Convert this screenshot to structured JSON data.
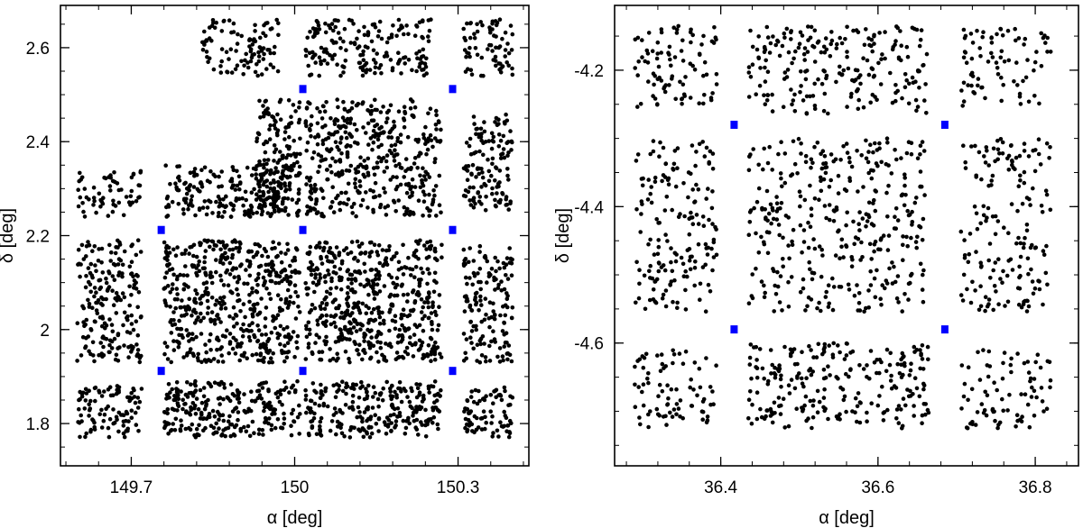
{
  "chart_data": [
    {
      "type": "scatter",
      "xlabel": "α [deg]",
      "ylabel": "δ [deg]",
      "xlim": [
        149.57,
        150.43
      ],
      "ylim": [
        1.71,
        2.69
      ],
      "x_ticks": [
        149.7,
        150,
        150.3
      ],
      "x_tick_labels": [
        "149.7",
        "150",
        "150.3"
      ],
      "y_ticks": [
        1.8,
        2,
        2.2,
        2.4,
        2.6
      ],
      "y_tick_labels": [
        "1.8",
        "2",
        "2.2",
        "2.4",
        "2.6"
      ],
      "grid": false,
      "legend": "none",
      "colors": {
        "points": "#000000",
        "markers": "#0000ff"
      },
      "series": [
        {
          "marker": "dot",
          "regions": [
            {
              "x": [
                149.83,
                149.97
              ],
              "y": [
                2.54,
                2.66
              ],
              "count": 100
            },
            {
              "x": [
                150.02,
                150.25
              ],
              "y": [
                2.54,
                2.66
              ],
              "count": 180
            },
            {
              "x": [
                150.31,
                150.4
              ],
              "y": [
                2.54,
                2.66
              ],
              "count": 70
            },
            {
              "x": [
                149.93,
                150.01
              ],
              "y": [
                2.24,
                2.49
              ],
              "count": 170
            },
            {
              "x": [
                150.02,
                150.27
              ],
              "y": [
                2.24,
                2.49
              ],
              "count": 420
            },
            {
              "x": [
                150.31,
                150.4
              ],
              "y": [
                2.25,
                2.46
              ],
              "count": 130
            },
            {
              "x": [
                149.6,
                149.72
              ],
              "y": [
                2.24,
                2.34
              ],
              "count": 60
            },
            {
              "x": [
                149.76,
                150.01
              ],
              "y": [
                2.24,
                2.35
              ],
              "count": 200
            },
            {
              "x": [
                149.6,
                149.72
              ],
              "y": [
                1.93,
                2.19
              ],
              "count": 200
            },
            {
              "x": [
                149.76,
                150.01
              ],
              "y": [
                1.93,
                2.19
              ],
              "count": 520
            },
            {
              "x": [
                150.02,
                150.27
              ],
              "y": [
                1.93,
                2.19
              ],
              "count": 540
            },
            {
              "x": [
                150.31,
                150.4
              ],
              "y": [
                1.93,
                2.18
              ],
              "count": 150
            },
            {
              "x": [
                149.6,
                149.72
              ],
              "y": [
                1.77,
                1.88
              ],
              "count": 100
            },
            {
              "x": [
                149.76,
                150.01
              ],
              "y": [
                1.77,
                1.89
              ],
              "count": 260
            },
            {
              "x": [
                150.02,
                150.27
              ],
              "y": [
                1.77,
                1.89
              ],
              "count": 260
            },
            {
              "x": [
                150.31,
                150.4
              ],
              "y": [
                1.77,
                1.88
              ],
              "count": 80
            }
          ]
        },
        {
          "marker": "square",
          "points": [
            {
              "x": 150.015,
              "y": 2.512
            },
            {
              "x": 150.29,
              "y": 2.512
            },
            {
              "x": 149.755,
              "y": 2.212
            },
            {
              "x": 150.015,
              "y": 2.212
            },
            {
              "x": 150.29,
              "y": 2.212
            },
            {
              "x": 149.755,
              "y": 1.912
            },
            {
              "x": 150.015,
              "y": 1.912
            },
            {
              "x": 150.29,
              "y": 1.912
            }
          ]
        }
      ]
    },
    {
      "type": "scatter",
      "xlabel": "α [deg]",
      "ylabel": "δ [deg]",
      "xlim": [
        36.265,
        36.855
      ],
      "ylim": [
        -4.78,
        -4.105
      ],
      "x_ticks": [
        36.4,
        36.6,
        36.8
      ],
      "x_tick_labels": [
        "36.4",
        "36.6",
        "36.8"
      ],
      "y_ticks": [
        -4.2,
        -4.4,
        -4.6
      ],
      "y_tick_labels": [
        "-4.2",
        "-4.4",
        "-4.6"
      ],
      "grid": false,
      "legend": "none",
      "colors": {
        "points": "#000000",
        "markers": "#0000ff"
      },
      "series": [
        {
          "marker": "dot",
          "regions": [
            {
              "x": [
                36.29,
                36.395
              ],
              "y": [
                -4.255,
                -4.135
              ],
              "count": 90
            },
            {
              "x": [
                36.435,
                36.665
              ],
              "y": [
                -4.265,
                -4.135
              ],
              "count": 220
            },
            {
              "x": [
                36.705,
                36.82
              ],
              "y": [
                -4.255,
                -4.135
              ],
              "count": 80
            },
            {
              "x": [
                36.29,
                36.395
              ],
              "y": [
                -4.555,
                -4.3
              ],
              "count": 170
            },
            {
              "x": [
                36.435,
                36.665
              ],
              "y": [
                -4.555,
                -4.3
              ],
              "count": 360
            },
            {
              "x": [
                36.705,
                36.82
              ],
              "y": [
                -4.555,
                -4.3
              ],
              "count": 170
            },
            {
              "x": [
                36.29,
                36.395
              ],
              "y": [
                -4.725,
                -4.61
              ],
              "count": 80
            },
            {
              "x": [
                36.435,
                36.665
              ],
              "y": [
                -4.725,
                -4.6
              ],
              "count": 240
            },
            {
              "x": [
                36.705,
                36.82
              ],
              "y": [
                -4.725,
                -4.61
              ],
              "count": 80
            }
          ]
        },
        {
          "marker": "square",
          "points": [
            {
              "x": 36.417,
              "y": -4.28
            },
            {
              "x": 36.685,
              "y": -4.28
            },
            {
              "x": 36.417,
              "y": -4.58
            },
            {
              "x": 36.685,
              "y": -4.58
            }
          ]
        }
      ]
    }
  ]
}
